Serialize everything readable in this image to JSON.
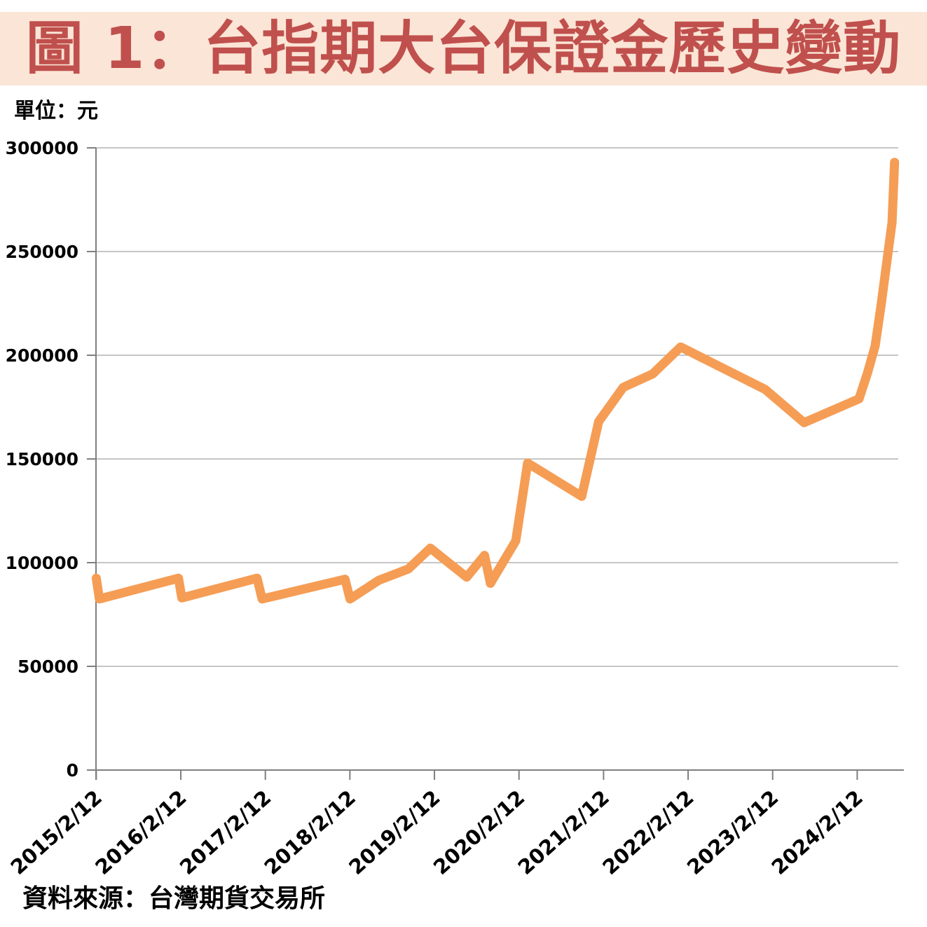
{
  "title": "圖 1：台指期大台保證金歷史變動",
  "unit_label": "單位：元",
  "source_label": "資料來源：台灣期貨交易所",
  "colors": {
    "banner_bg": "#FBE5D6",
    "title_text": "#C0504D",
    "line": "#F59D55",
    "gridline": "#A3A3A3",
    "axis": "#7F7F7F",
    "label_text": "#000000"
  },
  "chart_data": {
    "type": "line",
    "series_name": "台指期大台保證金",
    "title": "圖 1：台指期大台保證金歷史變動",
    "ylabel": "單位：元",
    "ylim": [
      0,
      300000
    ],
    "x_range": [
      2015.115,
      2024.67
    ],
    "grid": true,
    "legend": "none",
    "y_ticks": [
      {
        "v": 0,
        "label": "0"
      },
      {
        "v": 50000,
        "label": "50000"
      },
      {
        "v": 100000,
        "label": "100000"
      },
      {
        "v": 150000,
        "label": "150000"
      },
      {
        "v": 200000,
        "label": "200000"
      },
      {
        "v": 250000,
        "label": "250000"
      },
      {
        "v": 300000,
        "label": "300000"
      }
    ],
    "x_ticks": [
      {
        "pos": 2015.118,
        "label": "2015/2/12"
      },
      {
        "pos": 2016.118,
        "label": "2016/2/12"
      },
      {
        "pos": 2017.118,
        "label": "2017/2/12"
      },
      {
        "pos": 2018.118,
        "label": "2018/2/12"
      },
      {
        "pos": 2019.118,
        "label": "2019/2/12"
      },
      {
        "pos": 2020.118,
        "label": "2020/2/12"
      },
      {
        "pos": 2021.118,
        "label": "2021/2/12"
      },
      {
        "pos": 2022.118,
        "label": "2022/2/12"
      },
      {
        "pos": 2023.118,
        "label": "2023/2/12"
      },
      {
        "pos": 2024.118,
        "label": "2024/2/12"
      }
    ],
    "x_unit": "date (decimal year; ticks mark 2/12 of each year)",
    "y_unit": "NT$ (margin per contract)",
    "points": [
      [
        2015.118,
        92500
      ],
      [
        2015.155,
        82500
      ],
      [
        2016.09,
        92500
      ],
      [
        2016.13,
        83000
      ],
      [
        2017.02,
        92500
      ],
      [
        2017.08,
        82500
      ],
      [
        2018.06,
        92000
      ],
      [
        2018.12,
        82500
      ],
      [
        2018.46,
        91500
      ],
      [
        2018.81,
        97000
      ],
      [
        2019.07,
        107000
      ],
      [
        2019.5,
        93000
      ],
      [
        2019.71,
        103500
      ],
      [
        2019.78,
        90000
      ],
      [
        2020.08,
        110500
      ],
      [
        2020.22,
        148000
      ],
      [
        2020.86,
        132000
      ],
      [
        2021.06,
        168000
      ],
      [
        2021.35,
        184500
      ],
      [
        2021.7,
        191000
      ],
      [
        2022.03,
        204000
      ],
      [
        2023.03,
        183500
      ],
      [
        2023.49,
        167500
      ],
      [
        2024.14,
        179000
      ],
      [
        2024.24,
        191500
      ],
      [
        2024.33,
        204500
      ],
      [
        2024.4,
        224000
      ],
      [
        2024.53,
        264000
      ],
      [
        2024.56,
        293000
      ]
    ]
  }
}
